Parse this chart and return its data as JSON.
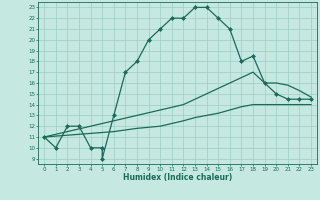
{
  "title": "",
  "xlabel": "Humidex (Indice chaleur)",
  "xlim": [
    -0.5,
    23.5
  ],
  "ylim": [
    8.5,
    23.5
  ],
  "xticks": [
    0,
    1,
    2,
    3,
    4,
    5,
    6,
    7,
    8,
    9,
    10,
    11,
    12,
    13,
    14,
    15,
    16,
    17,
    18,
    19,
    20,
    21,
    22,
    23
  ],
  "yticks": [
    9,
    10,
    11,
    12,
    13,
    14,
    15,
    16,
    17,
    18,
    19,
    20,
    21,
    22,
    23
  ],
  "background_color": "#c5e8e0",
  "line_color": "#1a6b5a",
  "grid_color": "#9ecec4",
  "line1_x": [
    0,
    1,
    2,
    3,
    4,
    5,
    5,
    6,
    7,
    8,
    9,
    10,
    11,
    12,
    13,
    14,
    15,
    16,
    17,
    18,
    19,
    20,
    21,
    22,
    23
  ],
  "line1_y": [
    11,
    10,
    12,
    12,
    10,
    10,
    9,
    13,
    17,
    18,
    20,
    21,
    22,
    22,
    23,
    23,
    22,
    21,
    18,
    18.5,
    16,
    15,
    14.5,
    14.5,
    14.5
  ],
  "line2_x": [
    0,
    6,
    8,
    10,
    12,
    13,
    14,
    15,
    16,
    17,
    18,
    19,
    20,
    21,
    22,
    23
  ],
  "line2_y": [
    11,
    12.5,
    13,
    13.5,
    14,
    14.5,
    15,
    15.5,
    16,
    16.5,
    17,
    16,
    16,
    15.8,
    15.3,
    14.7
  ],
  "line3_x": [
    0,
    6,
    8,
    10,
    12,
    13,
    14,
    15,
    16,
    17,
    18,
    19,
    20,
    21,
    22,
    23
  ],
  "line3_y": [
    11,
    11.5,
    11.8,
    12,
    12.5,
    12.8,
    13,
    13.2,
    13.5,
    13.8,
    14,
    14,
    14,
    14,
    14,
    14
  ]
}
